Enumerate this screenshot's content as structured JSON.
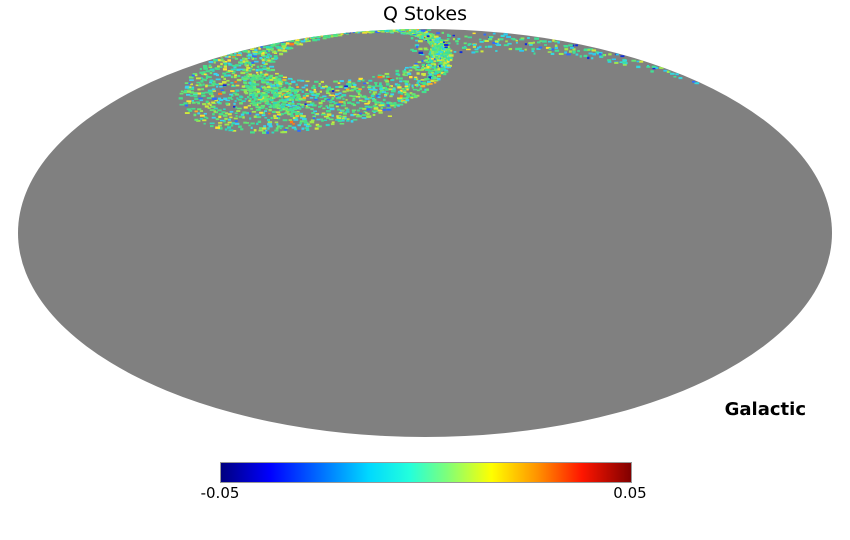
{
  "figure": {
    "title": "Q Stokes",
    "coordinate_label": "Galactic"
  },
  "chart_data": {
    "type": "heatmap",
    "projection": "mollweide",
    "title": "Q Stokes",
    "coordinate_system": "Galactic",
    "colormap": "jet",
    "value_min": -0.05,
    "value_max": 0.05,
    "colorbar_tick_labels": [
      "-0.05",
      "0.05"
    ],
    "unseen_color": "#808080",
    "background_color": "#ffffff",
    "observed_region_summary": "Only a scan-ring region near the top of the projection is observed: an annular speckled loop around a gray hole in the upper-left, a dense green patch at its lower-left, sparse dashed rows below it, and a thinning band hugging the top edge toward the right; values mostly near 0 (greens/cyans) with scattered blue and yellow/orange outliers; the rest of the sky is unobserved gray",
    "colorbar": {
      "stops": [
        {
          "color": "#00007f",
          "pos": 0
        },
        {
          "color": "#0000ff",
          "pos": 12
        },
        {
          "color": "#00d8ff",
          "pos": 36
        },
        {
          "color": "#23ffdc",
          "pos": 46
        },
        {
          "color": "#7dff7b",
          "pos": 55
        },
        {
          "color": "#ffff00",
          "pos": 66
        },
        {
          "color": "#ff9400",
          "pos": 77
        },
        {
          "color": "#ff1600",
          "pos": 88
        },
        {
          "color": "#800000",
          "pos": 100
        }
      ]
    },
    "palette": {
      "ring": [
        {
          "c": "#45e18b",
          "w": 4.5
        },
        {
          "c": "#63e873",
          "w": 2.5
        },
        {
          "c": "#2fd9c0",
          "w": 1.5
        },
        {
          "c": "#38d4ef",
          "w": 1.8
        },
        {
          "c": "#9fe84e",
          "w": 1.8
        },
        {
          "c": "#cfe93c",
          "w": 1.2
        },
        {
          "c": "#ffe42e",
          "w": 0.6
        },
        {
          "c": "#ffaf24",
          "w": 0.25
        },
        {
          "c": "#2f6bff",
          "w": 0.55
        },
        {
          "c": "#1228d8",
          "w": 0.25
        },
        {
          "c": "#ff7a1a",
          "w": 0.12
        },
        {
          "c": "#e03914",
          "w": 0.06
        }
      ],
      "band": [
        {
          "c": "#41e096",
          "w": 3
        },
        {
          "c": "#35d8de",
          "w": 2.5
        },
        {
          "c": "#2fc9ef",
          "w": 1.5
        },
        {
          "c": "#63e873",
          "w": 1.5
        },
        {
          "c": "#9fe84e",
          "w": 1.2
        },
        {
          "c": "#2f6bff",
          "w": 0.9
        },
        {
          "c": "#0f2cdc",
          "w": 0.5
        },
        {
          "c": "#cfe93c",
          "w": 0.7
        },
        {
          "c": "#ffe42e",
          "w": 0.3
        },
        {
          "c": "#ff8c1a",
          "w": 0.1
        }
      ],
      "blob": [
        {
          "c": "#47e08d",
          "w": 5
        },
        {
          "c": "#5fe873",
          "w": 4
        },
        {
          "c": "#2fd9b9",
          "w": 2
        },
        {
          "c": "#8ce95c",
          "w": 2
        },
        {
          "c": "#35d2ee",
          "w": 1
        },
        {
          "c": "#c6e83e",
          "w": 0.7
        },
        {
          "c": "#ffd22e",
          "w": 0.2
        },
        {
          "c": "#2f6bff",
          "w": 0.2
        }
      ]
    }
  }
}
